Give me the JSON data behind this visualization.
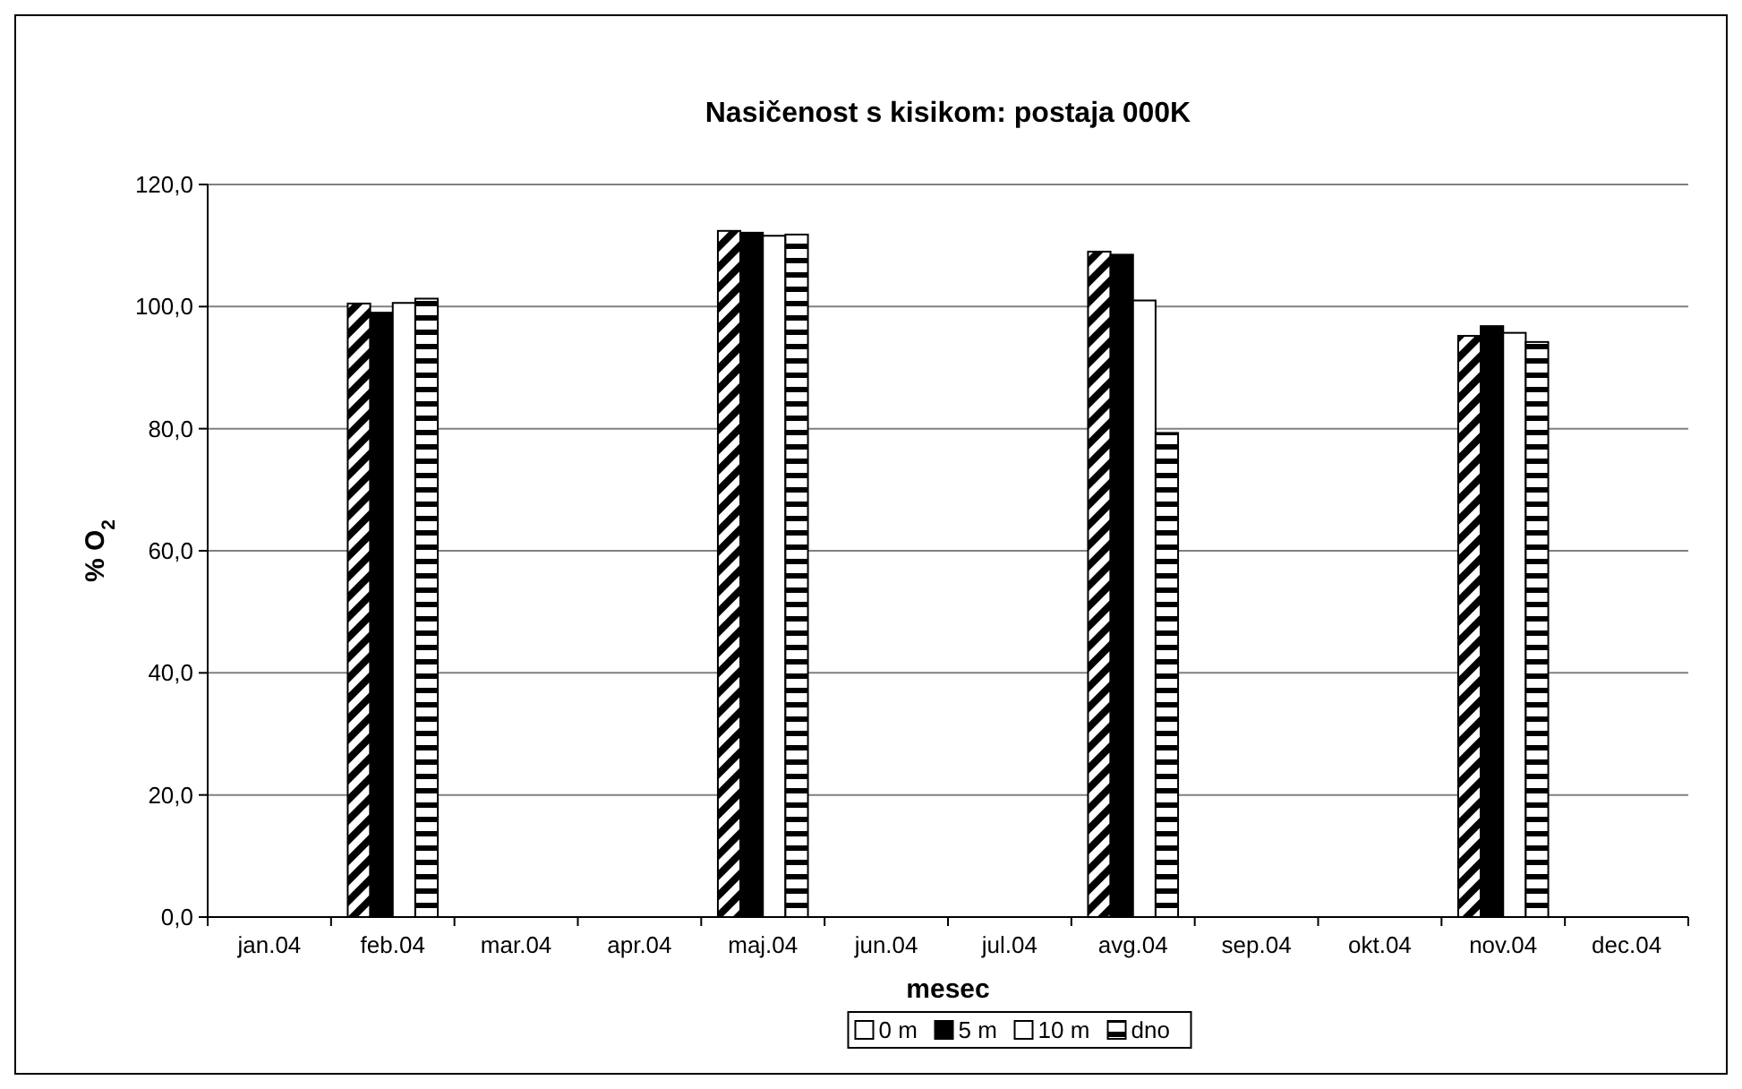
{
  "chart_data": {
    "type": "bar",
    "title": "Nasičenost s kisikom: postaja 000K",
    "xlabel": "mesec",
    "ylabel": "% O$_{2}$",
    "categories": [
      "jan.04",
      "feb.04",
      "mar.04",
      "apr.04",
      "maj.04",
      "jun.04",
      "jul.04",
      "avg.04",
      "sep.04",
      "okt.04",
      "nov.04",
      "dec.04"
    ],
    "series": [
      {
        "name": "0 m",
        "color": "#ffffff",
        "values": [
          null,
          100.5,
          null,
          null,
          112.4,
          null,
          null,
          109.0,
          null,
          null,
          95.2,
          null
        ]
      },
      {
        "name": "5 m",
        "color": "#000000",
        "values": [
          null,
          99.0,
          null,
          null,
          112.1,
          null,
          null,
          108.5,
          null,
          null,
          96.8,
          null
        ]
      },
      {
        "name": "10 m",
        "color": "#ffffff",
        "values": [
          null,
          100.6,
          null,
          null,
          111.6,
          null,
          null,
          101.0,
          null,
          null,
          95.7,
          null
        ]
      },
      {
        "name": "dno",
        "color": "#ffffff",
        "values": [
          null,
          101.3,
          null,
          null,
          111.8,
          null,
          null,
          79.3,
          null,
          null,
          94.2,
          null
        ]
      }
    ],
    "ylim": [
      0,
      120
    ],
    "yticks": [
      {
        "value": 0,
        "label": "0,0"
      },
      {
        "value": 20,
        "label": "20,0"
      },
      {
        "value": 40,
        "label": "40,0"
      },
      {
        "value": 60,
        "label": "60,0"
      },
      {
        "value": 80,
        "label": "80,0"
      },
      {
        "value": 100,
        "label": "100,0"
      },
      {
        "value": 120,
        "label": "120,0"
      }
    ],
    "grid": "y",
    "legend": "bottom"
  }
}
